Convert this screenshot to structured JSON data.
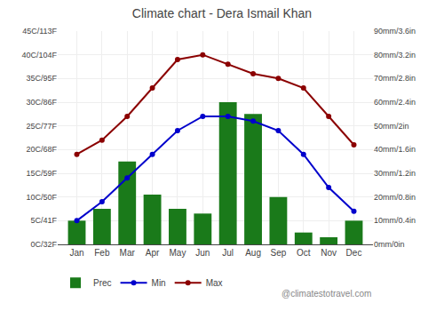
{
  "chart_data": {
    "type": "bar",
    "title": "Climate chart - Dera Ismail Khan",
    "categories": [
      "Jan",
      "Feb",
      "Mar",
      "Apr",
      "May",
      "Jun",
      "Jul",
      "Aug",
      "Sep",
      "Oct",
      "Nov",
      "Dec"
    ],
    "series": [
      {
        "name": "Prec",
        "type": "bar",
        "axis": "y2",
        "color": "#1a7a1a",
        "values": [
          10,
          15,
          35,
          21,
          15,
          13,
          60,
          55,
          20,
          5,
          3,
          10
        ]
      },
      {
        "name": "Min",
        "type": "line",
        "color": "#0000cc",
        "marker": "circle",
        "values": [
          5,
          9,
          14,
          19,
          24,
          27,
          27,
          26,
          24,
          19,
          12,
          7
        ]
      },
      {
        "name": "Max",
        "type": "line",
        "color": "#8b0000",
        "marker": "circle",
        "values": [
          19,
          22,
          27,
          33,
          39,
          40,
          38,
          36,
          35,
          33,
          27,
          21
        ]
      }
    ],
    "ylim": [
      0,
      45
    ],
    "yticks": [
      {
        "value": 0,
        "label": "0C/32F"
      },
      {
        "value": 5,
        "label": "5C/41F"
      },
      {
        "value": 10,
        "label": "10C/50F"
      },
      {
        "value": 15,
        "label": "15C/59F"
      },
      {
        "value": 20,
        "label": "20C/68F"
      },
      {
        "value": 25,
        "label": "25C/77F"
      },
      {
        "value": 30,
        "label": "30C/86F"
      },
      {
        "value": 35,
        "label": "35C/95F"
      },
      {
        "value": 40,
        "label": "40C/104F"
      },
      {
        "value": 45,
        "label": "45C/113F"
      }
    ],
    "y2lim": [
      0,
      90
    ],
    "y2ticks": [
      {
        "value": 0,
        "label": "0mm/0in"
      },
      {
        "value": 10,
        "label": "10mm/0.4in"
      },
      {
        "value": 20,
        "label": "20mm/0.8in"
      },
      {
        "value": 30,
        "label": "30mm/1.2in"
      },
      {
        "value": 40,
        "label": "40mm/1.6in"
      },
      {
        "value": 50,
        "label": "50mm/2in"
      },
      {
        "value": 60,
        "label": "60mm/2.4in"
      },
      {
        "value": 70,
        "label": "70mm/2.8in"
      },
      {
        "value": 80,
        "label": "80mm/3.2in"
      },
      {
        "value": 90,
        "label": "90mm/3.6in"
      }
    ],
    "grid": true,
    "legend": "bottom",
    "annotations": [
      "@climatestotravel.com"
    ]
  }
}
